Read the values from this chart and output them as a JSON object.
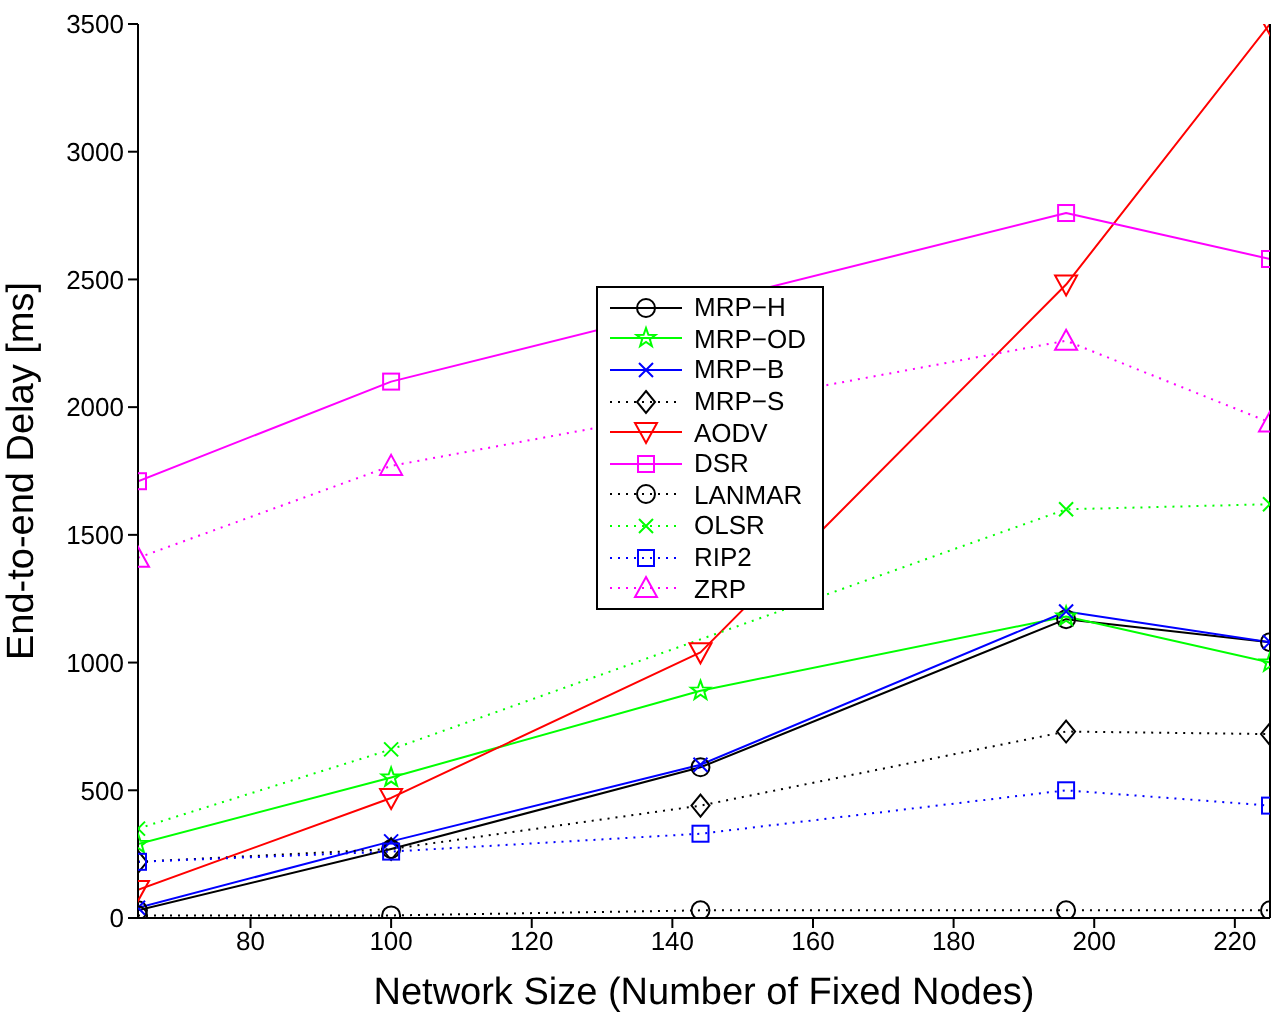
{
  "chart_data": {
    "type": "line",
    "xlabel": "Network Size (Number of Fixed Nodes)",
    "ylabel": "End-to-end Delay [ms]",
    "x": [
      64,
      100,
      144,
      196,
      225
    ],
    "xlim": [
      64,
      225
    ],
    "xticks": [
      80,
      100,
      120,
      140,
      160,
      180,
      200,
      220
    ],
    "ylim": [
      0,
      3500
    ],
    "yticks": [
      0,
      500,
      1000,
      1500,
      2000,
      2500,
      3000,
      3500
    ],
    "grid": false,
    "legend": "center",
    "series": [
      {
        "name": "MRP−H",
        "color": "#000000",
        "marker": "circle",
        "line_style": "solid",
        "values": [
          30,
          270,
          590,
          1170,
          1080
        ]
      },
      {
        "name": "MRP−OD",
        "color": "#00ff00",
        "marker": "star",
        "line_style": "solid",
        "values": [
          290,
          550,
          890,
          1180,
          1000
        ]
      },
      {
        "name": "MRP−B",
        "color": "#0000ff",
        "marker": "cross",
        "line_style": "solid",
        "values": [
          40,
          300,
          600,
          1200,
          1080
        ]
      },
      {
        "name": "MRP−S",
        "color": "#000000",
        "marker": "diamond",
        "line_style": "dotted",
        "values": [
          220,
          270,
          440,
          730,
          720
        ]
      },
      {
        "name": "AODV",
        "color": "#ff0000",
        "marker": "triangle-down",
        "line_style": "solid",
        "values": [
          110,
          470,
          1040,
          2480,
          3500
        ]
      },
      {
        "name": "DSR",
        "color": "#ff00ff",
        "marker": "square",
        "line_style": "solid",
        "values": [
          1710,
          2100,
          null,
          2760,
          2580
        ]
      },
      {
        "name": "LANMAR",
        "color": "#000000",
        "marker": "circle",
        "line_style": "dotted",
        "values": [
          10,
          10,
          30,
          30,
          30
        ]
      },
      {
        "name": "OLSR",
        "color": "#00ff00",
        "marker": "cross",
        "line_style": "dotted",
        "values": [
          350,
          660,
          null,
          1600,
          1620
        ]
      },
      {
        "name": "RIP2",
        "color": "#0000ff",
        "marker": "square",
        "line_style": "dotted",
        "values": [
          220,
          260,
          330,
          500,
          440
        ]
      },
      {
        "name": "ZRP",
        "color": "#ff00ff",
        "marker": "triangle",
        "line_style": "dotted",
        "values": [
          1410,
          1770,
          null,
          2260,
          1940
        ]
      }
    ]
  }
}
